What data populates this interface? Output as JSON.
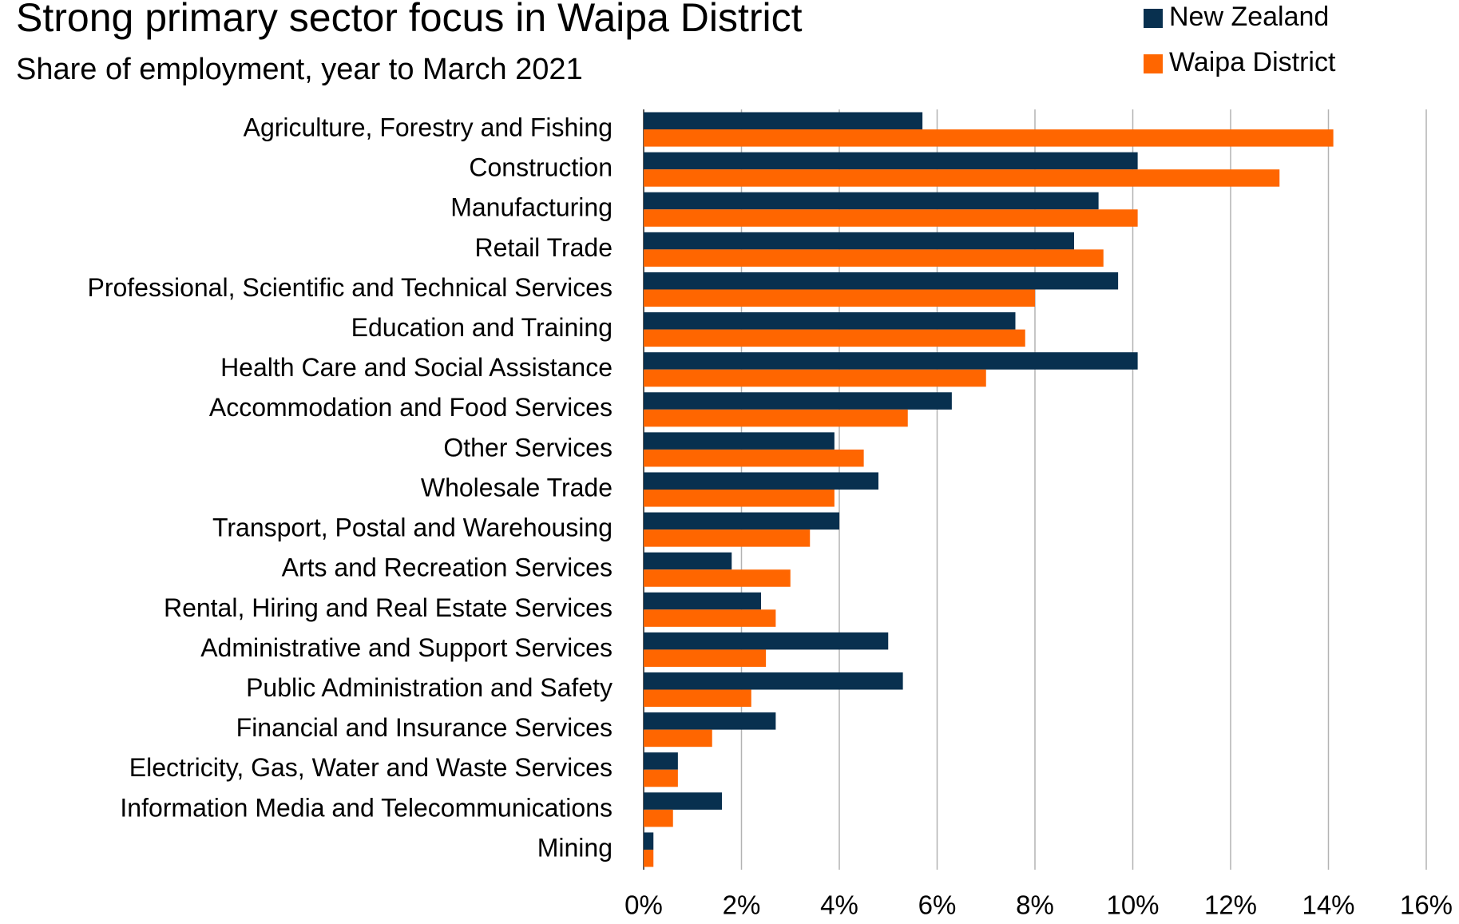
{
  "chart_data": {
    "type": "hbar",
    "title": "Strong primary sector focus in Waipa District",
    "subtitle": "Share of employment, year to March 2021",
    "categories": [
      "Agriculture, Forestry and Fishing",
      "Construction",
      "Manufacturing",
      "Retail Trade",
      "Professional, Scientific and Technical Services",
      "Education and Training",
      "Health Care and Social Assistance",
      "Accommodation and Food Services",
      "Other Services",
      "Wholesale Trade",
      "Transport, Postal and Warehousing",
      "Arts and Recreation Services",
      "Rental, Hiring and Real Estate Services",
      "Administrative and Support Services",
      "Public Administration and Safety",
      "Financial and Insurance Services",
      "Electricity, Gas, Water and Waste Services",
      "Information Media and Telecommunications",
      "Mining"
    ],
    "series": [
      {
        "name": "New Zealand",
        "color": "#08304f",
        "values": [
          5.7,
          10.1,
          9.3,
          8.8,
          9.7,
          7.6,
          10.1,
          6.3,
          3.9,
          4.8,
          4.0,
          1.8,
          2.4,
          5.0,
          5.3,
          2.7,
          0.7,
          1.6,
          0.2
        ]
      },
      {
        "name": "Waipa District",
        "color": "#ff6600",
        "values": [
          14.1,
          13.0,
          10.1,
          9.4,
          8.0,
          7.8,
          7.0,
          5.4,
          4.5,
          3.9,
          3.4,
          3.0,
          2.7,
          2.5,
          2.2,
          1.4,
          0.7,
          0.6,
          0.2
        ]
      }
    ],
    "xlim": [
      0,
      16
    ],
    "xticks": [
      {
        "value": 0,
        "label": "0%"
      },
      {
        "value": 2,
        "label": "2%"
      },
      {
        "value": 4,
        "label": "4%"
      },
      {
        "value": 6,
        "label": "6%"
      },
      {
        "value": 8,
        "label": "8%"
      },
      {
        "value": 10,
        "label": "10%"
      },
      {
        "value": 12,
        "label": "12%"
      },
      {
        "value": 14,
        "label": "14%"
      },
      {
        "value": 16,
        "label": "16%"
      }
    ],
    "grid": true,
    "legend": "top-right"
  }
}
